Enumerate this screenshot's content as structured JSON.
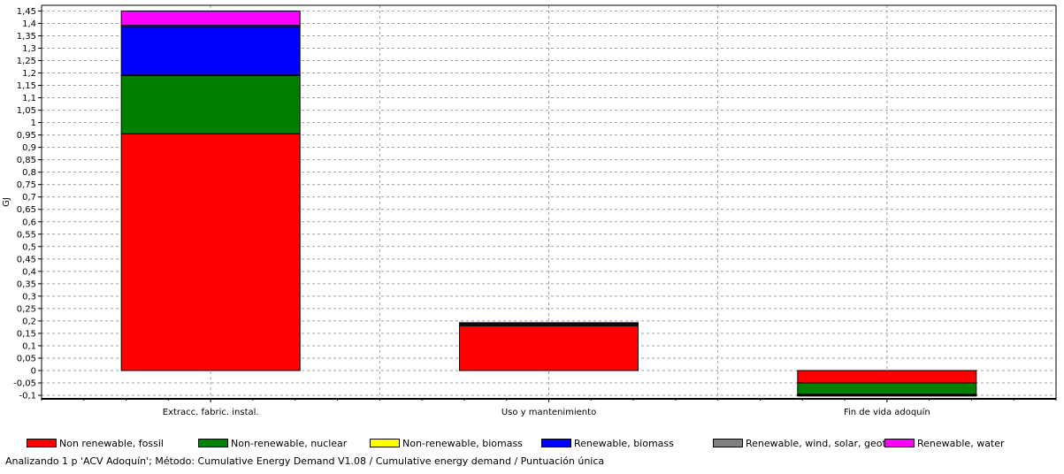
{
  "chart_data": {
    "type": "bar",
    "stacked": true,
    "categories": [
      "Extracc. fabric. instal.",
      "Uso y mantenimiento",
      "Fin de vida adoquín"
    ],
    "ylabel": "GJ",
    "xlabel": "",
    "ylim": [
      -0.1,
      1.45
    ],
    "ytick_step": 0.05,
    "grid": true,
    "legend_position": "bottom",
    "series": [
      {
        "name": "Non renewable, fossil",
        "color": "#ff0000",
        "values": [
          0.955,
          0.18,
          -0.05
        ]
      },
      {
        "name": "Non-renewable, nuclear",
        "color": "#008000",
        "values": [
          0.235,
          0.005,
          -0.045
        ]
      },
      {
        "name": "Non-renewable, biomass",
        "color": "#ffff00",
        "values": [
          0.002,
          0.0,
          -0.001
        ]
      },
      {
        "name": "Renewable, biomass",
        "color": "#0000ff",
        "values": [
          0.195,
          0.003,
          -0.002
        ]
      },
      {
        "name": "Renewable, wind, solar, geothe",
        "color": "#808080",
        "values": [
          0.005,
          0.001,
          -0.002
        ]
      },
      {
        "name": "Renewable, water",
        "color": "#ff00ff",
        "values": [
          0.078,
          0.004,
          -0.001
        ]
      }
    ]
  },
  "footer": "Analizando 1 p 'ACV Adoquín';  Método: Cumulative Energy Demand V1.08 / Cumulative energy demand / Puntuación única"
}
